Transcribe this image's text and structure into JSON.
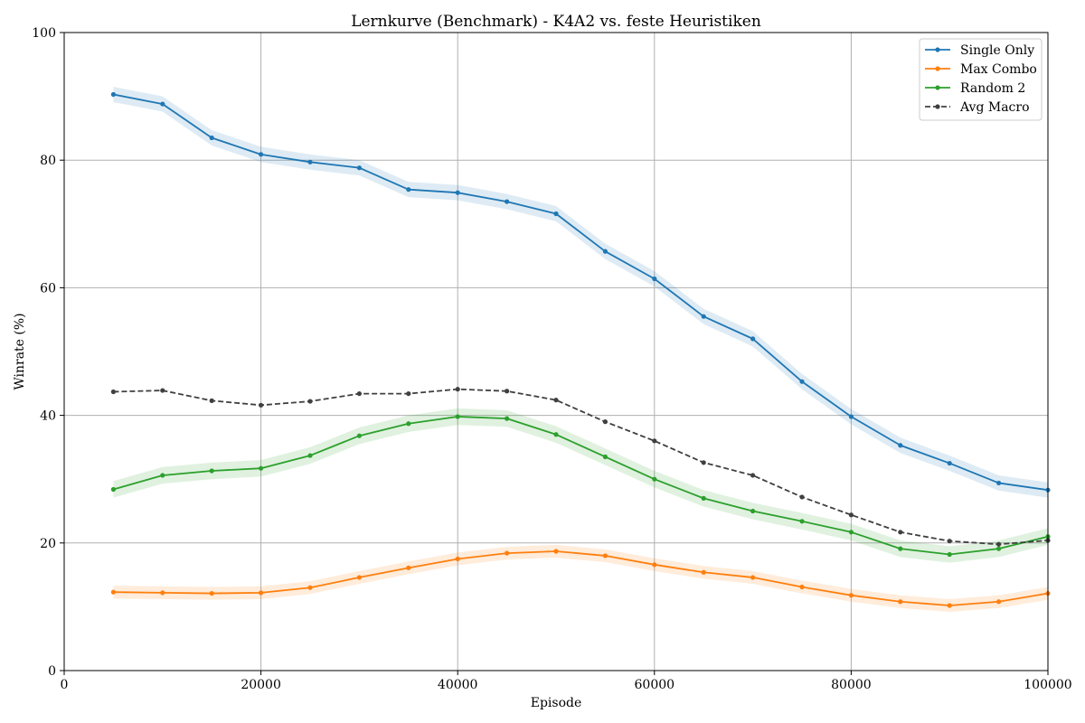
{
  "chart_data": {
    "type": "line",
    "title": "Lernkurve (Benchmark) - K4A2 vs. feste Heuristiken",
    "xlabel": "Episode",
    "ylabel": "Winrate (%)",
    "xlim": [
      0,
      100000
    ],
    "ylim": [
      0,
      100
    ],
    "xticks": [
      0,
      20000,
      40000,
      60000,
      80000,
      100000
    ],
    "yticks": [
      0,
      20,
      40,
      60,
      80,
      100
    ],
    "grid": true,
    "legend_position": "top-right",
    "x": [
      5000,
      10000,
      15000,
      20000,
      25000,
      30000,
      35000,
      40000,
      45000,
      50000,
      55000,
      60000,
      65000,
      70000,
      75000,
      80000,
      85000,
      90000,
      95000,
      100000
    ],
    "series": [
      {
        "name": "Single Only",
        "color": "#1f77b4",
        "dashed": false,
        "band": 1.2,
        "values": [
          90.3,
          88.8,
          83.5,
          80.9,
          79.7,
          78.8,
          75.4,
          74.9,
          73.5,
          71.6,
          65.7,
          61.4,
          55.5,
          52.0,
          45.3,
          39.8,
          35.3,
          32.5,
          29.4,
          28.3
        ]
      },
      {
        "name": "Max Combo",
        "color": "#ff7f0e",
        "dashed": false,
        "band": 1.0,
        "values": [
          12.3,
          12.2,
          12.1,
          12.2,
          13.0,
          14.6,
          16.1,
          17.5,
          18.4,
          18.7,
          18.0,
          16.6,
          15.4,
          14.6,
          13.1,
          11.8,
          10.8,
          10.2,
          10.8,
          12.1
        ]
      },
      {
        "name": "Random 2",
        "color": "#2ca02c",
        "dashed": false,
        "band": 1.3,
        "values": [
          28.4,
          30.6,
          31.3,
          31.7,
          33.7,
          36.8,
          38.7,
          39.8,
          39.5,
          37.0,
          33.5,
          30.0,
          27.0,
          25.0,
          23.4,
          21.7,
          19.1,
          18.2,
          19.1,
          21.0
        ]
      },
      {
        "name": "Avg Macro",
        "color": "#404040",
        "dashed": true,
        "band": 0,
        "values": [
          43.7,
          43.9,
          42.3,
          41.6,
          42.2,
          43.4,
          43.4,
          44.1,
          43.8,
          42.4,
          39.0,
          36.0,
          32.6,
          30.6,
          27.2,
          24.4,
          21.7,
          20.3,
          19.8,
          20.4
        ]
      }
    ]
  }
}
